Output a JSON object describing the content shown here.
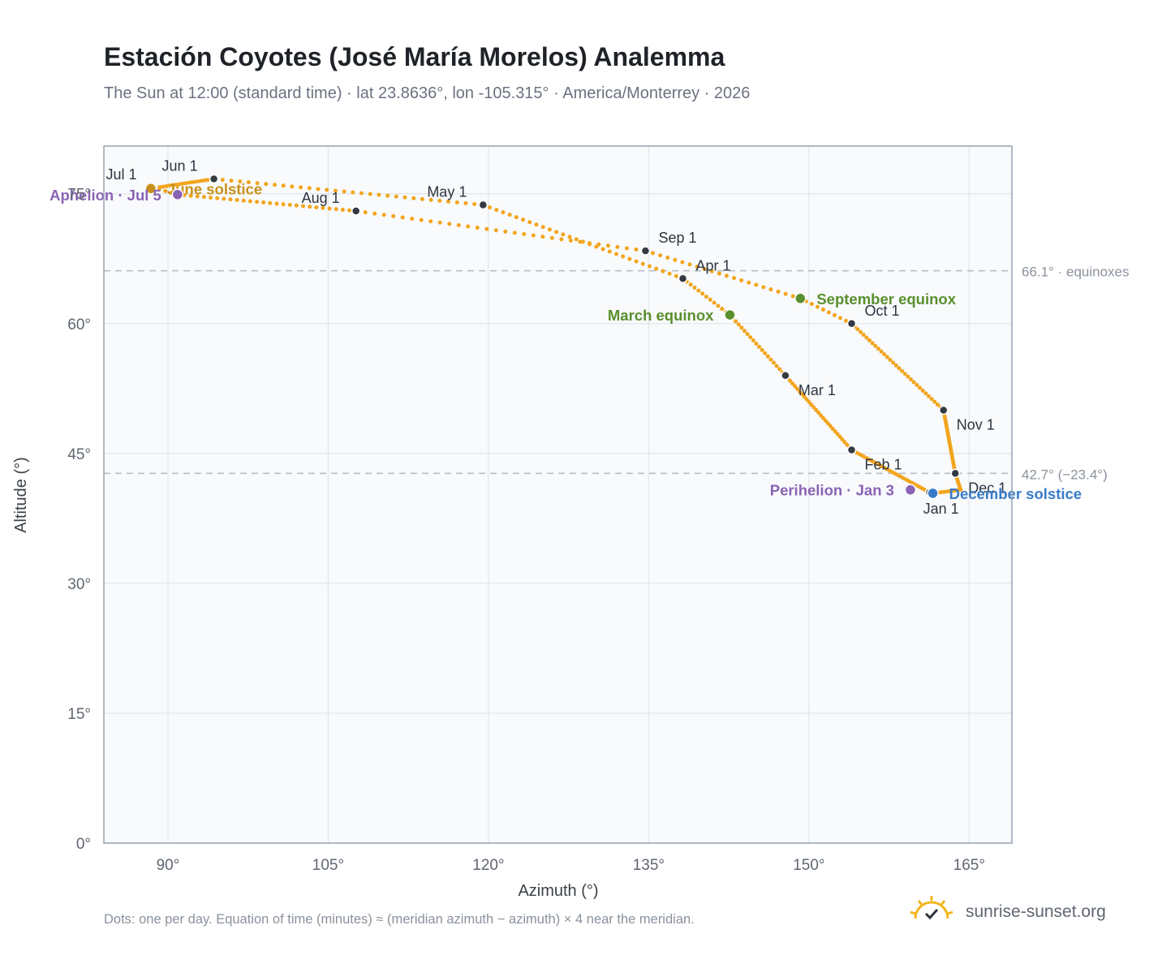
{
  "title": "Estación Coyotes (José María Morelos) Analemma",
  "subtitle": "The Sun at 12:00 (standard time) · lat 23.8636°, lon -105.315° · America/Monterrey · 2026",
  "footnote": "Dots: one per day. Equation of time (minutes) ≈ (meridian azimuth − azimuth) × 4 near the meridian.",
  "brand": {
    "name": "sunrise-sunset.org",
    "logo_icon": "sun-check-icon"
  },
  "colors": {
    "path": "#f2a51d",
    "month_marker": "#333a42",
    "solstice_june": "#c8901a",
    "solstice_december": "#3a7bc8",
    "equinox": "#5a8f2e",
    "apsis": "#8a64b4",
    "reference_line": "#b9bec6",
    "plot_bg": "#f8fafc",
    "grid": "#e3e7ec",
    "axis_frame": "#97a2b0"
  },
  "chart_data": {
    "type": "scatter",
    "xlabel": "Azimuth (°)",
    "ylabel": "Altitude (°)",
    "xlim": [
      84,
      169
    ],
    "ylim": [
      0,
      80.5
    ],
    "xticks": [
      90,
      105,
      120,
      135,
      150,
      165
    ],
    "yticks": [
      0,
      15,
      30,
      45,
      60,
      75
    ],
    "xtick_labels": [
      "90°",
      "105°",
      "120°",
      "135°",
      "150°",
      "165°"
    ],
    "ytick_labels": [
      "0°",
      "15°",
      "30°",
      "45°",
      "60°",
      "75°"
    ],
    "grid": true,
    "reference_lines": [
      {
        "altitude": 66.1,
        "label": "66.1° · equinoxes"
      },
      {
        "altitude": 42.7,
        "label": "42.7° (−23.4°)"
      }
    ],
    "path_keypoints": [
      {
        "day": 1,
        "az": 161.3,
        "alt": 40.5
      },
      {
        "day": 32,
        "az": 154.0,
        "alt": 45.4
      },
      {
        "day": 60,
        "az": 147.8,
        "alt": 54.0
      },
      {
        "day": 79,
        "az": 142.6,
        "alt": 61.0
      },
      {
        "day": 91,
        "az": 138.2,
        "alt": 65.2
      },
      {
        "day": 121,
        "az": 119.5,
        "alt": 73.7
      },
      {
        "day": 152,
        "az": 94.3,
        "alt": 76.7
      },
      {
        "day": 172,
        "az": 88.4,
        "alt": 75.6
      },
      {
        "day": 182,
        "az": 88.6,
        "alt": 75.7
      },
      {
        "day": 186,
        "az": 90.9,
        "alt": 74.9
      },
      {
        "day": 213,
        "az": 107.6,
        "alt": 73.0
      },
      {
        "day": 244,
        "az": 134.7,
        "alt": 68.4
      },
      {
        "day": 265,
        "az": 149.2,
        "alt": 62.9
      },
      {
        "day": 274,
        "az": 154.0,
        "alt": 60.0
      },
      {
        "day": 305,
        "az": 162.6,
        "alt": 50.0
      },
      {
        "day": 335,
        "az": 163.7,
        "alt": 42.7
      },
      {
        "day": 345,
        "az": 164.2,
        "alt": 40.8
      },
      {
        "day": 355,
        "az": 161.6,
        "alt": 40.4
      },
      {
        "day": 365,
        "az": 161.3,
        "alt": 40.5
      }
    ],
    "month_markers": [
      {
        "label": "Jan 1",
        "az": 161.3,
        "alt": 40.5,
        "pos": "below"
      },
      {
        "label": "Feb 1",
        "az": 154.0,
        "alt": 45.4,
        "pos": "right-below"
      },
      {
        "label": "Mar 1",
        "az": 147.8,
        "alt": 54.0,
        "pos": "right-below"
      },
      {
        "label": "Apr 1",
        "az": 138.2,
        "alt": 65.2,
        "pos": "right-above"
      },
      {
        "label": "May 1",
        "az": 119.5,
        "alt": 73.7,
        "pos": "left-above"
      },
      {
        "label": "Jun 1",
        "az": 94.3,
        "alt": 76.7,
        "pos": "left-above"
      },
      {
        "label": "Jul 1",
        "az": 88.6,
        "alt": 75.7,
        "pos": "left-above"
      },
      {
        "label": "Aug 1",
        "az": 107.6,
        "alt": 73.0,
        "pos": "left-above"
      },
      {
        "label": "Sep 1",
        "az": 134.7,
        "alt": 68.4,
        "pos": "right-above"
      },
      {
        "label": "Oct 1",
        "az": 154.0,
        "alt": 60.0,
        "pos": "right-above"
      },
      {
        "label": "Nov 1",
        "az": 162.6,
        "alt": 50.0,
        "pos": "right-below"
      },
      {
        "label": "Dec 1",
        "az": 163.7,
        "alt": 42.7,
        "pos": "right-below"
      }
    ],
    "events": [
      {
        "label": "June solstice",
        "az": 88.4,
        "alt": 75.6,
        "color_key": "solstice_june",
        "pos": "right"
      },
      {
        "label": "December solstice",
        "az": 161.6,
        "alt": 40.4,
        "color_key": "solstice_december",
        "pos": "right"
      },
      {
        "label": "March equinox",
        "az": 142.6,
        "alt": 61.0,
        "color_key": "equinox",
        "pos": "left"
      },
      {
        "label": "September equinox",
        "az": 149.2,
        "alt": 62.9,
        "color_key": "equinox",
        "pos": "right"
      },
      {
        "label": "Perihelion · Jan 3",
        "az": 159.5,
        "alt": 40.8,
        "color_key": "apsis",
        "pos": "left"
      },
      {
        "label": "Aphelion · Jul 5",
        "az": 90.9,
        "alt": 74.9,
        "color_key": "apsis",
        "pos": "left"
      }
    ]
  }
}
